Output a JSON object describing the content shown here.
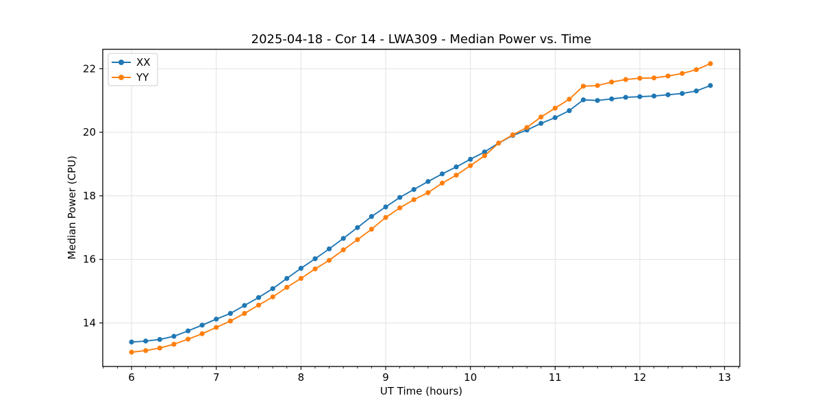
{
  "chart_data": {
    "type": "line",
    "title": "2025-04-18 - Cor 14 - LWA309 - Median Power vs. Time",
    "xlabel": "UT Time (hours)",
    "ylabel": "Median Power (CPU)",
    "xlim": [
      5.66,
      13.18
    ],
    "ylim": [
      12.63,
      22.61
    ],
    "x_ticks": [
      6,
      7,
      8,
      9,
      10,
      11,
      12,
      13
    ],
    "y_ticks": [
      14,
      16,
      18,
      20,
      22
    ],
    "x_minor_step": 0.1666667,
    "grid": true,
    "legend_position": "upper-left",
    "marker": "circle",
    "colors": {
      "background": "#ffffff",
      "spine": "#000000",
      "grid": "#dedede",
      "legend_border": "#cccccc",
      "series_xx": "#1f77b4",
      "series_yy": "#ff7f0e"
    },
    "x": [
      6.0,
      6.167,
      6.333,
      6.5,
      6.667,
      6.833,
      7.0,
      7.167,
      7.333,
      7.5,
      7.667,
      7.833,
      8.0,
      8.167,
      8.333,
      8.5,
      8.667,
      8.833,
      9.0,
      9.167,
      9.333,
      9.5,
      9.667,
      9.833,
      10.0,
      10.167,
      10.333,
      10.5,
      10.667,
      10.833,
      11.0,
      11.167,
      11.333,
      11.5,
      11.667,
      11.833,
      12.0,
      12.167,
      12.333,
      12.5,
      12.667,
      12.833
    ],
    "series": [
      {
        "name": "XX",
        "color": "#1f77b4",
        "values": [
          13.4,
          13.43,
          13.48,
          13.58,
          13.75,
          13.93,
          14.12,
          14.3,
          14.55,
          14.8,
          15.08,
          15.4,
          15.72,
          16.02,
          16.33,
          16.66,
          17.0,
          17.35,
          17.65,
          17.95,
          18.2,
          18.45,
          18.69,
          18.91,
          19.15,
          19.38,
          19.66,
          19.9,
          20.07,
          20.28,
          20.46,
          20.68,
          21.02,
          21.0,
          21.05,
          21.1,
          21.12,
          21.14,
          21.18,
          21.22,
          21.3,
          21.47
        ]
      },
      {
        "name": "YY",
        "color": "#ff7f0e",
        "values": [
          13.08,
          13.13,
          13.21,
          13.33,
          13.49,
          13.66,
          13.86,
          14.06,
          14.3,
          14.56,
          14.82,
          15.12,
          15.4,
          15.7,
          15.97,
          16.3,
          16.62,
          16.95,
          17.32,
          17.62,
          17.88,
          18.1,
          18.4,
          18.65,
          18.95,
          19.26,
          19.66,
          19.92,
          20.15,
          20.48,
          20.76,
          21.04,
          21.45,
          21.47,
          21.58,
          21.66,
          21.7,
          21.71,
          21.77,
          21.85,
          21.97,
          22.16
        ]
      }
    ]
  }
}
